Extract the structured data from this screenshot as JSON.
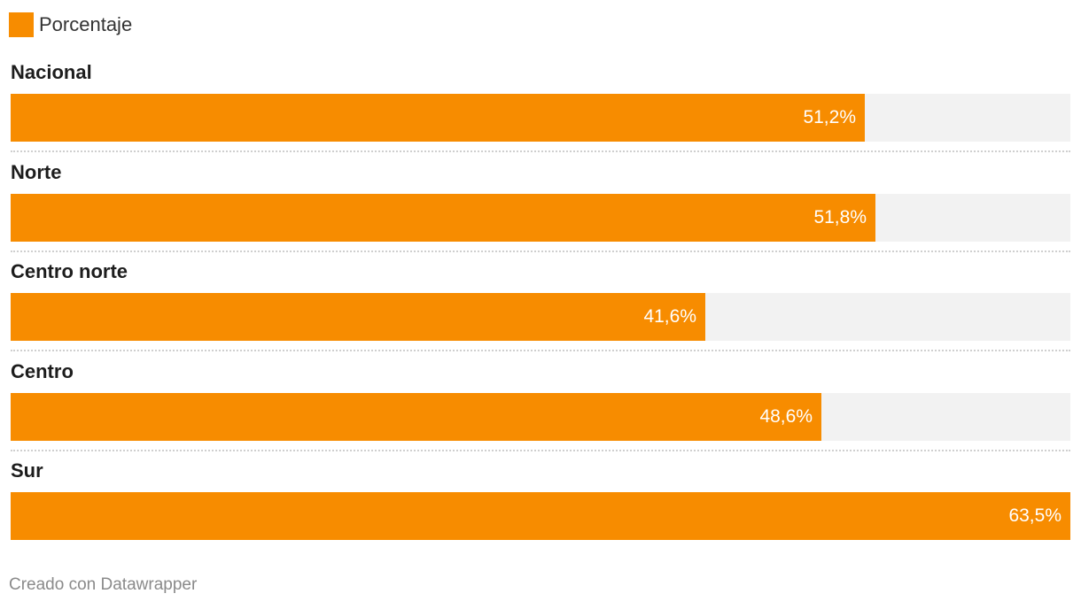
{
  "legend": {
    "label": "Porcentaje",
    "color": "#f78c00"
  },
  "colors": {
    "bar": "#f78c00",
    "track": "#f2f2f2"
  },
  "footer": {
    "text": "Creado con Datawrapper"
  },
  "chart_data": {
    "type": "bar",
    "orientation": "horizontal",
    "categories": [
      "Nacional",
      "Norte",
      "Centro norte",
      "Centro",
      "Sur"
    ],
    "series": [
      {
        "name": "Porcentaje",
        "values": [
          51.2,
          51.8,
          41.6,
          48.6,
          63.5
        ]
      }
    ],
    "value_labels": [
      "51,2%",
      "51,8%",
      "41,6%",
      "48,6%",
      "63,5%"
    ],
    "xlim": [
      0,
      63.5
    ],
    "grid": false,
    "legend_position": "top-left"
  }
}
